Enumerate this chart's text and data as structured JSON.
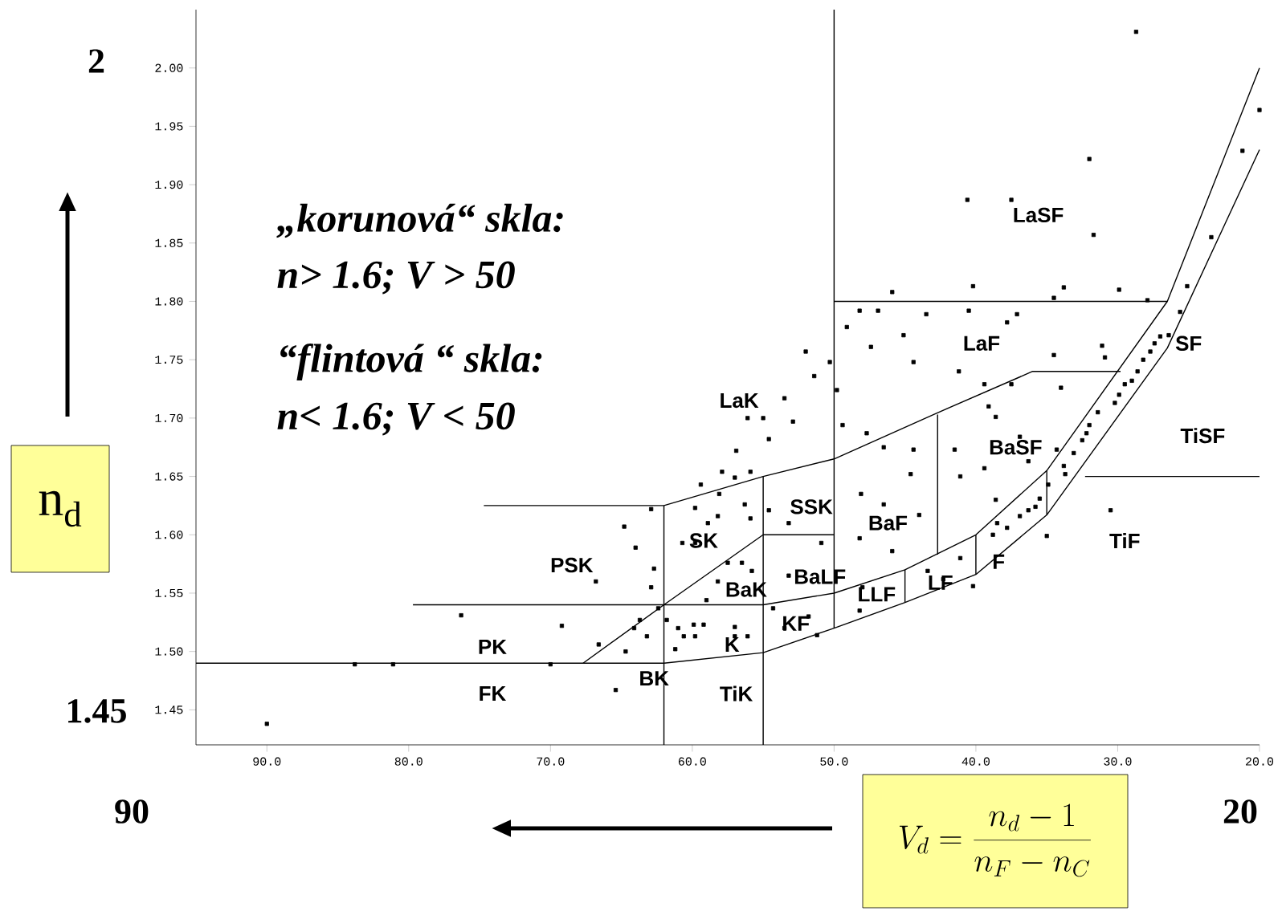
{
  "chart_data": {
    "type": "scatter",
    "xlabel": "V_{d} = \\frac{n_{d} - 1}{n_{F} - n_{C}}",
    "ylabel": "n$_{d}$",
    "xlim": [
      95,
      20
    ],
    "ylim": [
      1.42,
      2.05
    ],
    "xticks": [
      {
        "value": 90,
        "label": "90.0"
      },
      {
        "value": 80,
        "label": "80.0"
      },
      {
        "value": 70,
        "label": "70.0"
      },
      {
        "value": 60,
        "label": "60.0"
      },
      {
        "value": 50,
        "label": "50.0"
      },
      {
        "value": 40,
        "label": "40.0"
      },
      {
        "value": 30,
        "label": "30.0"
      },
      {
        "value": 20,
        "label": "20.0"
      }
    ],
    "yticks": [
      {
        "value": 1.45,
        "label": "1.45"
      },
      {
        "value": 1.5,
        "label": "1.50"
      },
      {
        "value": 1.55,
        "label": "1.55"
      },
      {
        "value": 1.6,
        "label": "1.60"
      },
      {
        "value": 1.65,
        "label": "1.65"
      },
      {
        "value": 1.7,
        "label": "1.70"
      },
      {
        "value": 1.75,
        "label": "1.75"
      },
      {
        "value": 1.8,
        "label": "1.80"
      },
      {
        "value": 1.85,
        "label": "1.85"
      },
      {
        "value": 1.9,
        "label": "1.90"
      },
      {
        "value": 1.95,
        "label": "1.95"
      },
      {
        "value": 2.0,
        "label": "2.00"
      }
    ],
    "series": [
      {
        "marker": "square",
        "color": "#000000",
        "x": [
          90.0,
          83.8,
          81.1,
          76.3,
          69.2,
          70.0,
          65.4,
          66.8,
          66.6,
          64.8,
          64.0,
          62.9,
          62.7,
          62.9,
          64.7,
          64.1,
          63.7,
          63.2,
          62.4,
          61.8,
          61.2,
          60.6,
          59.8,
          61.0,
          59.9,
          59.2,
          59.0,
          59.4,
          59.8,
          58.9,
          58.2,
          58.1,
          57.9,
          60.7,
          59.8,
          56.9,
          57.0,
          55.9,
          56.3,
          55.9,
          55.8,
          58.2,
          57.5,
          56.5,
          57.0,
          56.1,
          57.0,
          56.1,
          55.0,
          54.6,
          53.5,
          52.9,
          52.0,
          51.4,
          50.3,
          49.8,
          50.9,
          53.2,
          53.5,
          51.8,
          51.2,
          54.3,
          54.6,
          53.2,
          49.4,
          49.1,
          48.2,
          47.4,
          47.7,
          46.5,
          45.9,
          46.9,
          45.1,
          44.4,
          43.5,
          44.4,
          44.6,
          44.0,
          46.5,
          48.1,
          48.2,
          45.9,
          48.0,
          48.2,
          43.4,
          42.3,
          41.1,
          40.2,
          40.5,
          40.6,
          40.2,
          41.2,
          41.5,
          41.1,
          39.4,
          39.1,
          38.6,
          39.4,
          38.6,
          38.5,
          38.8,
          37.5,
          37.1,
          37.8,
          37.5,
          36.9,
          36.3,
          37.8,
          36.9,
          36.3,
          35.8,
          35.5,
          34.9,
          35.0,
          34.5,
          33.8,
          34.5,
          34.0,
          33.1,
          32.5,
          32.0,
          31.4,
          31.1,
          30.9,
          32.0,
          31.7,
          30.5,
          30.2,
          29.9,
          29.9,
          28.7,
          29.5,
          29.0,
          28.6,
          28.2,
          27.9,
          27.7,
          27.4,
          27.0,
          26.4,
          25.6,
          25.1,
          23.4,
          21.2,
          20.0,
          33.7,
          33.8,
          34.3,
          32.2
        ],
        "values": [
          1.438,
          1.489,
          1.489,
          1.531,
          1.522,
          1.489,
          1.467,
          1.56,
          1.506,
          1.607,
          1.589,
          1.622,
          1.571,
          1.555,
          1.5,
          1.52,
          1.527,
          1.513,
          1.537,
          1.527,
          1.502,
          1.513,
          1.513,
          1.52,
          1.523,
          1.523,
          1.544,
          1.643,
          1.623,
          1.61,
          1.616,
          1.635,
          1.654,
          1.593,
          1.593,
          1.672,
          1.649,
          1.654,
          1.626,
          1.614,
          1.569,
          1.56,
          1.576,
          1.576,
          1.521,
          1.513,
          1.513,
          1.7,
          1.7,
          1.682,
          1.717,
          1.697,
          1.757,
          1.736,
          1.748,
          1.724,
          1.593,
          1.565,
          1.52,
          1.53,
          1.514,
          1.537,
          1.621,
          1.61,
          1.694,
          1.778,
          1.792,
          1.761,
          1.687,
          1.675,
          1.808,
          1.792,
          1.771,
          1.748,
          1.789,
          1.673,
          1.652,
          1.617,
          1.626,
          1.635,
          1.597,
          1.586,
          1.555,
          1.535,
          1.569,
          1.562,
          1.58,
          1.556,
          1.792,
          1.887,
          1.813,
          1.74,
          1.673,
          1.65,
          1.657,
          1.71,
          1.701,
          1.729,
          1.63,
          1.61,
          1.6,
          1.887,
          1.789,
          1.782,
          1.729,
          1.684,
          1.663,
          1.606,
          1.616,
          1.621,
          1.624,
          1.631,
          1.643,
          1.599,
          1.754,
          1.812,
          1.803,
          1.726,
          1.67,
          1.681,
          1.694,
          1.705,
          1.762,
          1.752,
          1.922,
          1.857,
          1.621,
          1.713,
          1.72,
          1.81,
          2.031,
          1.729,
          1.732,
          1.74,
          1.75,
          1.801,
          1.757,
          1.764,
          1.77,
          1.771,
          1.791,
          1.813,
          1.855,
          1.929,
          1.964,
          1.652,
          1.659,
          1.673,
          1.687
        ]
      },
      {
        "type": "line",
        "color": "#000000",
        "x": [
          95,
          62,
          55,
          50,
          45,
          40,
          35,
          26.5,
          20
        ],
        "values": [
          1.49,
          1.49,
          1.499,
          1.52,
          1.542,
          1.566,
          1.617,
          1.76,
          1.93
        ]
      },
      {
        "type": "line",
        "color": "#000000",
        "x": [
          74.7,
          62,
          55,
          50,
          43,
          36,
          29.8
        ],
        "values": [
          1.625,
          1.625,
          1.65,
          1.665,
          1.703,
          1.74,
          1.74
        ]
      },
      {
        "type": "line",
        "color": "#000000",
        "x": [
          62,
          62
        ],
        "values": [
          1.42,
          1.625
        ]
      },
      {
        "type": "line",
        "color": "#000000",
        "x": [
          55,
          55
        ],
        "values": [
          1.42,
          1.65
        ]
      },
      {
        "type": "line",
        "color": "#000000",
        "x": [
          67.7,
          62,
          55,
          50
        ],
        "values": [
          1.49,
          1.54,
          1.6,
          1.6
        ]
      },
      {
        "type": "line",
        "color": "#000000",
        "x": [
          50,
          50
        ],
        "values": [
          2.05,
          1.52
        ]
      },
      {
        "type": "line",
        "color": "#000000",
        "x": [
          79.7,
          55,
          50,
          45,
          40,
          35,
          26.5,
          20
        ],
        "values": [
          1.54,
          1.54,
          1.55,
          1.57,
          1.6,
          1.655,
          1.8,
          2.0
        ]
      },
      {
        "type": "line",
        "color": "#000000",
        "x": [
          45,
          45
        ],
        "values": [
          1.57,
          1.542
        ]
      },
      {
        "type": "line",
        "color": "#000000",
        "x": [
          40,
          40
        ],
        "values": [
          1.6,
          1.566
        ]
      },
      {
        "type": "line",
        "color": "#000000",
        "x": [
          35,
          35
        ],
        "values": [
          1.655,
          1.617
        ]
      },
      {
        "type": "line",
        "color": "#000000",
        "x": [
          42.7,
          42.7
        ],
        "values": [
          1.583,
          1.703
        ]
      },
      {
        "type": "line",
        "color": "#000000",
        "x": [
          50,
          26.5
        ],
        "values": [
          1.8,
          1.8
        ]
      },
      {
        "type": "line",
        "color": "#000000",
        "x": [
          32.3,
          20
        ],
        "values": [
          1.65,
          1.65
        ]
      }
    ],
    "annotations": [
      "„korunová“ skla:",
      "n> 1.6; V > 50",
      "“flintová “ skla:",
      "n< 1.6; V < 50",
      "2",
      "1.45",
      "90",
      "20",
      "LaSF",
      "LaF",
      "SF",
      "LaK",
      "TiSF",
      "BaSF",
      "SSK",
      "BaF",
      "SK",
      "TiF",
      "PSK",
      "BaLF",
      "LLF",
      "LF",
      "F",
      "BaK",
      "KF",
      "PK",
      "K",
      "BK",
      "FK",
      "TiK"
    ]
  }
}
